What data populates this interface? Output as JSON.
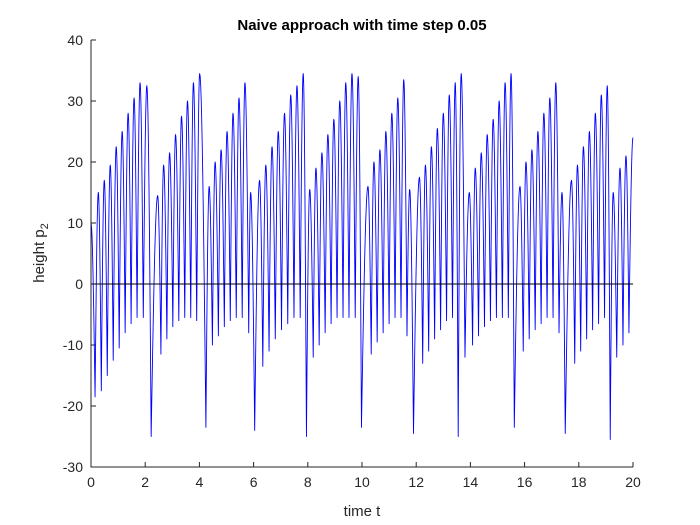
{
  "chart_data": {
    "type": "line",
    "title": "Naive approach with time step 0.05",
    "xlabel": "time t",
    "ylabel_main": "height p",
    "ylabel_sub": "2",
    "xlim": [
      0,
      20
    ],
    "ylim": [
      -30,
      40
    ],
    "xticks": [
      0,
      2,
      4,
      6,
      8,
      10,
      12,
      14,
      16,
      18,
      20
    ],
    "yticks": [
      -30,
      -20,
      -10,
      0,
      10,
      20,
      30,
      40
    ],
    "grid": false,
    "legend": "none",
    "series": [
      {
        "color": "#0000ff",
        "peak_times": [
          0.27,
          0.49,
          0.71,
          0.93,
          1.15,
          1.37,
          1.59,
          1.81,
          2.06,
          2.46,
          2.68,
          2.9,
          3.12,
          3.34,
          3.56,
          3.78,
          4.01,
          4.36,
          4.58,
          4.8,
          5.02,
          5.24,
          5.46,
          5.68,
          5.89,
          6.22,
          6.45,
          6.68,
          6.91,
          7.14,
          7.37,
          7.6,
          7.83,
          8.07,
          8.3,
          8.52,
          8.74,
          8.96,
          9.18,
          9.4,
          9.63,
          9.86,
          10.22,
          10.44,
          10.66,
          10.88,
          11.1,
          11.32,
          11.54,
          11.76,
          12.12,
          12.34,
          12.56,
          12.78,
          13.0,
          13.22,
          13.44,
          13.66,
          13.96,
          14.18,
          14.4,
          14.62,
          14.84,
          15.06,
          15.28,
          15.5,
          15.83,
          16.05,
          16.27,
          16.49,
          16.71,
          16.93,
          17.15,
          17.38,
          17.73,
          17.95,
          18.17,
          18.39,
          18.61,
          18.83,
          19.05,
          19.27,
          19.52,
          19.74
        ],
        "peak_heights": [
          15.0,
          17.0,
          19.5,
          22.5,
          25.0,
          28.0,
          30.5,
          33.0,
          32.5,
          14.5,
          19.5,
          21.5,
          24.5,
          27.5,
          30.0,
          33.0,
          34.5,
          16.0,
          20.0,
          22.0,
          25.0,
          28.0,
          30.5,
          33.0,
          15.0,
          17.0,
          19.5,
          22.5,
          25.0,
          28.0,
          31.0,
          32.5,
          34.5,
          15.5,
          19.0,
          21.5,
          24.5,
          27.0,
          30.0,
          33.0,
          34.5,
          34.0,
          16.0,
          20.0,
          22.0,
          25.0,
          28.0,
          30.5,
          33.5,
          15.5,
          17.5,
          19.5,
          22.5,
          25.5,
          28.0,
          31.0,
          33.0,
          34.5,
          15.0,
          19.0,
          21.5,
          24.5,
          27.0,
          30.0,
          33.0,
          34.5,
          16.0,
          20.0,
          22.0,
          25.0,
          28.0,
          30.5,
          33.0,
          15.0,
          17.0,
          19.5,
          22.5,
          25.0,
          28.0,
          31.0,
          32.5,
          15.0,
          19.0,
          21.0
        ],
        "trough_times": [
          0.15,
          0.38,
          0.6,
          0.82,
          1.04,
          1.26,
          1.48,
          1.7,
          1.93,
          2.22,
          2.58,
          2.8,
          3.02,
          3.24,
          3.46,
          3.68,
          3.9,
          4.24,
          4.48,
          4.7,
          4.92,
          5.14,
          5.36,
          5.58,
          5.82,
          6.04,
          6.34,
          6.57,
          6.8,
          7.03,
          7.26,
          7.49,
          7.72,
          7.95,
          8.2,
          8.42,
          8.64,
          8.86,
          9.08,
          9.3,
          9.52,
          9.75,
          9.98,
          10.34,
          10.56,
          10.78,
          11.0,
          11.22,
          11.44,
          11.66,
          11.9,
          12.24,
          12.46,
          12.68,
          12.9,
          13.12,
          13.34,
          13.55,
          13.8,
          14.08,
          14.3,
          14.52,
          14.74,
          14.96,
          15.18,
          15.4,
          15.62,
          15.95,
          16.17,
          16.39,
          16.61,
          16.83,
          17.05,
          17.27,
          17.5,
          17.85,
          18.07,
          18.29,
          18.51,
          18.73,
          18.95,
          19.16,
          19.4,
          19.63,
          19.85
        ],
        "trough_depths": [
          -18.5,
          -17.5,
          -15.0,
          -12.5,
          -10.5,
          -8.0,
          -6.5,
          -5.5,
          -5.5,
          -25.0,
          -11.5,
          -9.0,
          -7.0,
          -6.0,
          -5.5,
          -5.5,
          -6.0,
          -23.5,
          -10.0,
          -8.5,
          -7.0,
          -6.0,
          -5.5,
          -5.5,
          -8.0,
          -24.0,
          -13.5,
          -11.0,
          -9.0,
          -7.5,
          -6.5,
          -5.5,
          -5.5,
          -25.0,
          -12.0,
          -10.0,
          -8.0,
          -6.5,
          -5.5,
          -5.5,
          -5.5,
          -5.5,
          -23.5,
          -11.5,
          -9.5,
          -8.0,
          -6.5,
          -5.5,
          -5.5,
          -8.5,
          -24.5,
          -13.0,
          -11.0,
          -9.0,
          -7.5,
          -6.0,
          -5.5,
          -25.0,
          -12.0,
          -10.0,
          -8.5,
          -7.0,
          -6.0,
          -5.5,
          -5.5,
          -5.5,
          -23.5,
          -11.0,
          -9.0,
          -7.5,
          -6.5,
          -5.5,
          -5.5,
          -8.0,
          -24.5,
          -13.0,
          -11.0,
          -9.0,
          -7.5,
          -6.5,
          -5.5,
          -25.5,
          -12.0,
          -10.0,
          -8.0
        ],
        "end_value": 24.0
      }
    ],
    "baseline": {
      "y": 0,
      "color": "#000000"
    }
  }
}
